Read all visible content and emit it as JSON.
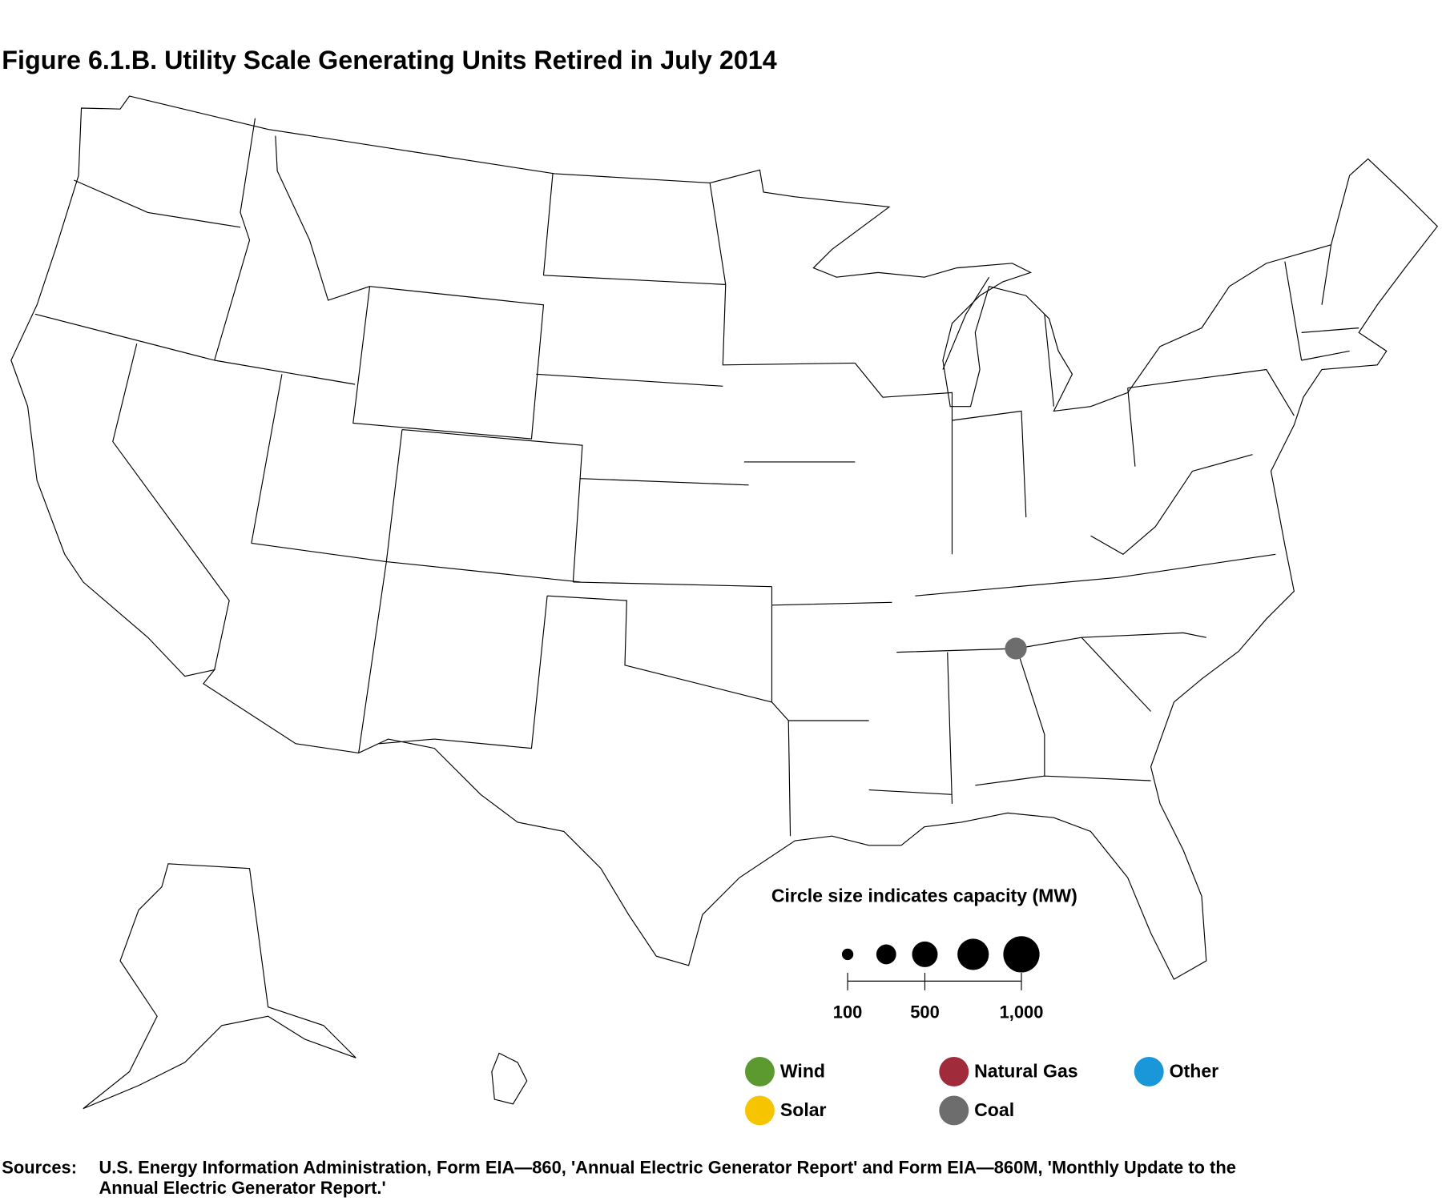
{
  "chart_data": {
    "type": "bubble_map",
    "title": "Figure 6.1.B. Utility Scale Generating Units Retired in July 2014",
    "size_legend": {
      "title": "Circle size indicates capacity (MW)",
      "values": [
        100,
        300,
        500,
        750,
        1000
      ],
      "ticks": [
        100,
        500,
        {
          "value": 1000,
          "label": "1,000"
        }
      ]
    },
    "series": [
      {
        "name": "Wind",
        "color": "#5c9a30",
        "values": [],
        "lon": [],
        "lat": []
      },
      {
        "name": "Natural Gas",
        "color": "#a02b3b",
        "values": [],
        "lon": [],
        "lat": []
      },
      {
        "name": "Other",
        "color": "#1a97d9",
        "values": [],
        "lon": [],
        "lat": []
      },
      {
        "name": "Solar",
        "color": "#f6c400",
        "values": [],
        "lon": [],
        "lat": []
      },
      {
        "name": "Coal",
        "color": "#6d6d6d",
        "values": [
          500
        ],
        "lon": [
          -85.75
        ],
        "lat": [
          34.88
        ]
      }
    ],
    "sources": {
      "label": "Sources:",
      "lines": [
        "U.S. Energy Information Administration, Form EIA—860, 'Annual Electric Generator Report' and Form EIA—860M, 'Monthly Update to the",
        "Annual Electric Generator Report.'"
      ]
    }
  }
}
